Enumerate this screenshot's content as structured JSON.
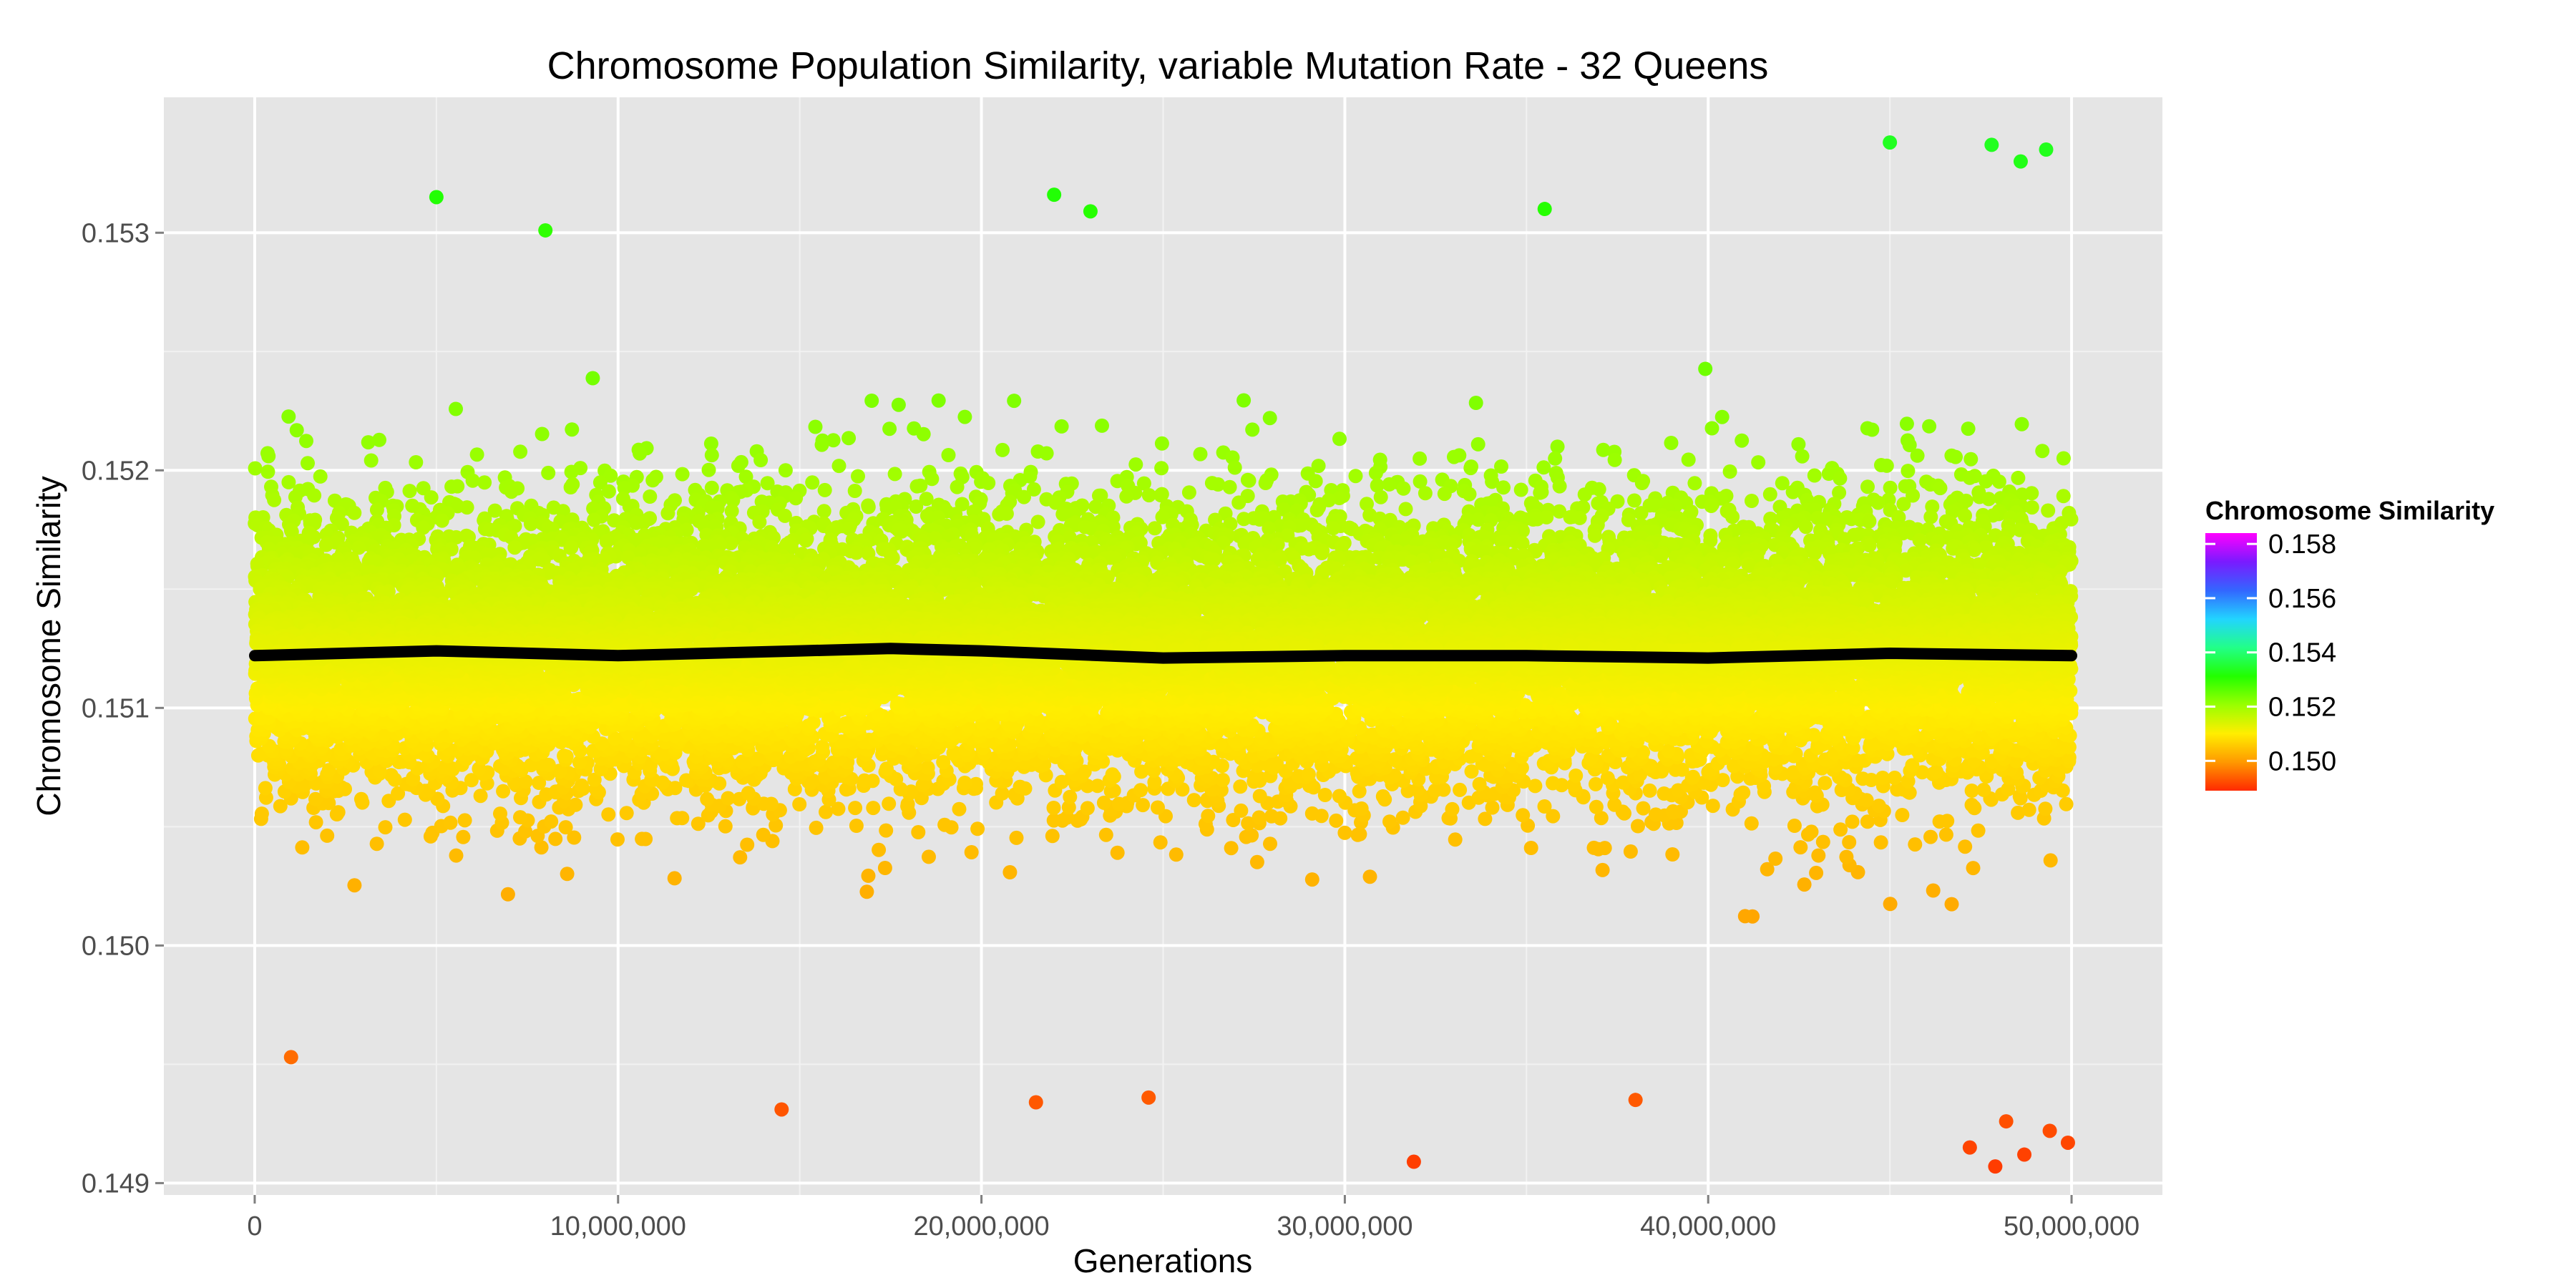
{
  "chart_data": {
    "type": "scatter",
    "title": "Chromosome Population Similarity, variable Mutation Rate - 32 Queens",
    "xlabel": "Generations",
    "ylabel": "Chromosome Similarity",
    "xlim": [
      -2500000,
      52500000
    ],
    "ylim": [
      0.14895,
      0.15357
    ],
    "x_ticks": [
      0,
      10000000,
      20000000,
      30000000,
      40000000,
      50000000
    ],
    "x_tick_labels": [
      "0",
      "10,000,000",
      "20,000,000",
      "30,000,000",
      "40,000,000",
      "50,000,000"
    ],
    "y_ticks": [
      0.149,
      0.15,
      0.151,
      0.152,
      0.153
    ],
    "y_tick_labels": [
      "0.149",
      "0.150",
      "0.151",
      "0.152",
      "0.153"
    ],
    "grid": true,
    "background": "#e5e5e5",
    "legend": {
      "title": "Chromosome Similarity",
      "placement": "right",
      "range": [
        0.1489,
        0.1584
      ],
      "ticks": [
        0.15,
        0.152,
        0.154,
        0.156,
        0.158
      ],
      "tick_labels": [
        "0.150",
        "0.152",
        "0.154",
        "0.156",
        "0.158"
      ],
      "colors": [
        "#ff2a00",
        "#ff9900",
        "#ffee00",
        "#99ff00",
        "#22ff00",
        "#22ff88",
        "#22d4ff",
        "#3366ff",
        "#7a1aff",
        "#ff00ff"
      ]
    },
    "scatter_summary": {
      "x_min": 0,
      "x_max": 50000000,
      "center": 0.15125,
      "core_spread": 0.0003,
      "typical_low": 0.15,
      "typical_high": 0.1525,
      "n_points_rendered": 16000
    },
    "outliers": [
      {
        "x": 5000000,
        "y": 0.15315
      },
      {
        "x": 8000000,
        "y": 0.15301
      },
      {
        "x": 22000000,
        "y": 0.15316
      },
      {
        "x": 23000000,
        "y": 0.15309
      },
      {
        "x": 35500000,
        "y": 0.1531
      },
      {
        "x": 45000000,
        "y": 0.15338
      },
      {
        "x": 47800000,
        "y": 0.15337
      },
      {
        "x": 48600000,
        "y": 0.1533
      },
      {
        "x": 49300000,
        "y": 0.15335
      },
      {
        "x": 1000000,
        "y": 0.14953
      },
      {
        "x": 14500000,
        "y": 0.14931
      },
      {
        "x": 21500000,
        "y": 0.14934
      },
      {
        "x": 24600000,
        "y": 0.14936
      },
      {
        "x": 31900000,
        "y": 0.14909
      },
      {
        "x": 38000000,
        "y": 0.14935
      },
      {
        "x": 47200000,
        "y": 0.14915
      },
      {
        "x": 47900000,
        "y": 0.14907
      },
      {
        "x": 48200000,
        "y": 0.14926
      },
      {
        "x": 48700000,
        "y": 0.14912
      },
      {
        "x": 49400000,
        "y": 0.14922
      },
      {
        "x": 49900000,
        "y": 0.14917
      }
    ],
    "smooth_line": {
      "x": [
        0,
        5000000,
        10000000,
        15000000,
        17500000,
        20000000,
        25000000,
        30000000,
        35000000,
        40000000,
        45000000,
        50000000
      ],
      "y": [
        0.15122,
        0.15124,
        0.15122,
        0.15124,
        0.15125,
        0.15124,
        0.15121,
        0.15122,
        0.15122,
        0.15121,
        0.15123,
        0.15122
      ]
    }
  }
}
